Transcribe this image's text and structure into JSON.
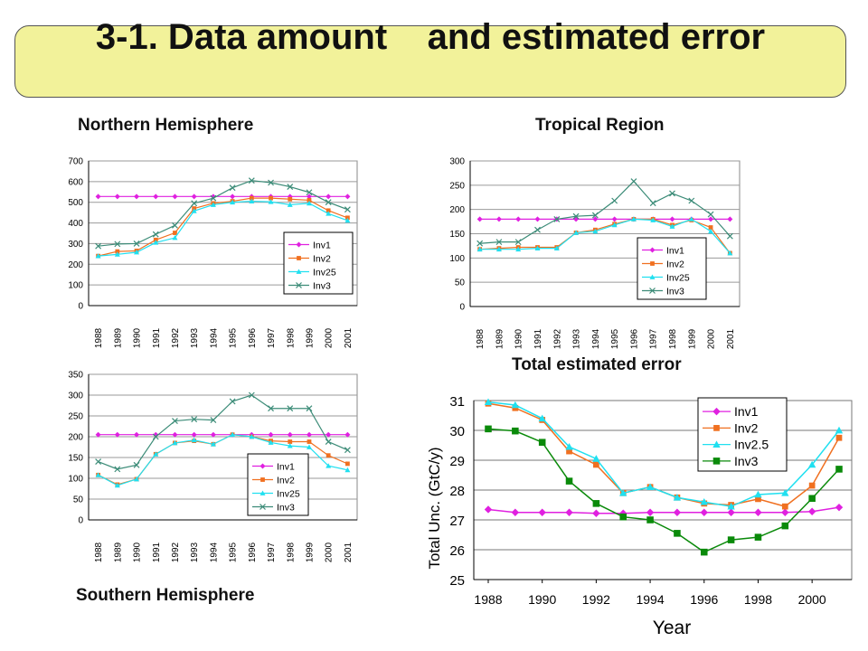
{
  "slide": {
    "title": "3-1. Data amount    and estimated error",
    "labels": {
      "north": "Northern Hemisphere",
      "tropic": "Tropical Region",
      "total": "Total estimated error",
      "south": "Southern Hemisphere"
    }
  },
  "colors": {
    "Inv1": "#e020e0",
    "Inv2": "#f07020",
    "Inv25": "#20e0f0",
    "Inv3": "#3c8c78",
    "Inv3_total": "#0a8a0a",
    "title_bg": "#f2f29a"
  },
  "chart_data": [
    {
      "id": "north",
      "type": "line",
      "x": [
        "1988",
        "1989",
        "1990",
        "1991",
        "1992",
        "1993",
        "1994",
        "1995",
        "1996",
        "1997",
        "1998",
        "1999",
        "2000",
        "2001"
      ],
      "ylim": [
        0,
        700
      ],
      "yticks": [
        0,
        100,
        200,
        300,
        400,
        500,
        600,
        700
      ],
      "grid": true,
      "legend_position": "bottom-right",
      "series": [
        {
          "name": "Inv1",
          "values": [
            528,
            528,
            528,
            528,
            528,
            528,
            528,
            528,
            528,
            528,
            528,
            528,
            528,
            528
          ]
        },
        {
          "name": "Inv2",
          "values": [
            240,
            262,
            265,
            318,
            352,
            470,
            495,
            505,
            520,
            520,
            515,
            510,
            460,
            425
          ]
        },
        {
          "name": "Inv25",
          "values": [
            240,
            248,
            258,
            305,
            328,
            458,
            488,
            500,
            505,
            502,
            488,
            495,
            445,
            412
          ]
        },
        {
          "name": "Inv3",
          "values": [
            288,
            298,
            300,
            345,
            388,
            495,
            520,
            570,
            605,
            595,
            575,
            548,
            500,
            465
          ]
        }
      ]
    },
    {
      "id": "tropic",
      "type": "line",
      "x": [
        "1988",
        "1989",
        "1990",
        "1991",
        "1992",
        "1993",
        "1994",
        "1995",
        "1996",
        "1997",
        "1998",
        "1999",
        "2000",
        "2001"
      ],
      "ylim": [
        0,
        300
      ],
      "yticks": [
        0,
        50,
        100,
        150,
        200,
        250,
        300
      ],
      "grid": true,
      "legend_position": "bottom-right",
      "series": [
        {
          "name": "Inv1",
          "values": [
            180,
            180,
            180,
            180,
            180,
            180,
            180,
            180,
            180,
            180,
            180,
            180,
            180,
            180
          ]
        },
        {
          "name": "Inv2",
          "values": [
            118,
            120,
            122,
            122,
            122,
            152,
            158,
            170,
            180,
            180,
            168,
            178,
            163,
            110
          ]
        },
        {
          "name": "Inv25",
          "values": [
            118,
            118,
            118,
            120,
            120,
            152,
            155,
            168,
            180,
            178,
            165,
            180,
            155,
            110
          ]
        },
        {
          "name": "Inv3",
          "values": [
            130,
            133,
            133,
            158,
            180,
            186,
            188,
            218,
            258,
            213,
            233,
            218,
            190,
            145
          ]
        }
      ]
    },
    {
      "id": "south",
      "type": "line",
      "x": [
        "1988",
        "1989",
        "1990",
        "1991",
        "1992",
        "1993",
        "1994",
        "1995",
        "1996",
        "1997",
        "1998",
        "1999",
        "2000",
        "2001"
      ],
      "ylim": [
        0,
        350
      ],
      "yticks": [
        0,
        50,
        100,
        150,
        200,
        250,
        300,
        350
      ],
      "grid": true,
      "legend_position": "bottom-right",
      "series": [
        {
          "name": "Inv1",
          "values": [
            205,
            205,
            205,
            205,
            205,
            205,
            205,
            205,
            205,
            205,
            205,
            205,
            205,
            205
          ]
        },
        {
          "name": "Inv2",
          "values": [
            108,
            85,
            98,
            158,
            185,
            190,
            182,
            205,
            200,
            190,
            188,
            188,
            155,
            135
          ]
        },
        {
          "name": "Inv25",
          "values": [
            108,
            83,
            98,
            158,
            185,
            192,
            182,
            205,
            200,
            186,
            178,
            175,
            130,
            120
          ]
        },
        {
          "name": "Inv3",
          "values": [
            140,
            122,
            132,
            200,
            238,
            242,
            240,
            285,
            300,
            268,
            268,
            268,
            188,
            168
          ]
        }
      ]
    },
    {
      "id": "total",
      "type": "line",
      "x": [
        1988,
        1989,
        1990,
        1991,
        1992,
        1993,
        1994,
        1995,
        1996,
        1997,
        1998,
        1999,
        2000,
        2001
      ],
      "xticks": [
        "1988",
        "1990",
        "1992",
        "1994",
        "1996",
        "1998",
        "2000"
      ],
      "ylabel": "Total Unc. (GtC/y)",
      "xlabel": "Year",
      "ylim": [
        25,
        31
      ],
      "yticks": [
        25,
        26,
        27,
        28,
        29,
        30,
        31
      ],
      "grid": true,
      "legend_position": "top-right",
      "series": [
        {
          "name": "Inv1",
          "values": [
            27.35,
            27.25,
            27.25,
            27.25,
            27.22,
            27.22,
            27.25,
            27.25,
            27.25,
            27.25,
            27.25,
            27.25,
            27.28,
            27.42
          ]
        },
        {
          "name": "Inv2",
          "values": [
            30.9,
            30.75,
            30.35,
            29.3,
            28.85,
            27.9,
            28.1,
            27.75,
            27.55,
            27.5,
            27.7,
            27.45,
            28.15,
            29.75
          ]
        },
        {
          "name": "Inv2.5",
          "values": [
            30.95,
            30.85,
            30.4,
            29.45,
            29.05,
            27.9,
            28.1,
            27.75,
            27.6,
            27.45,
            27.85,
            27.9,
            28.85,
            30.0
          ]
        },
        {
          "name": "Inv3",
          "values": [
            30.05,
            29.98,
            29.6,
            28.3,
            27.55,
            27.1,
            27.0,
            26.55,
            25.92,
            26.33,
            26.42,
            26.8,
            27.72,
            28.7
          ]
        }
      ]
    }
  ]
}
